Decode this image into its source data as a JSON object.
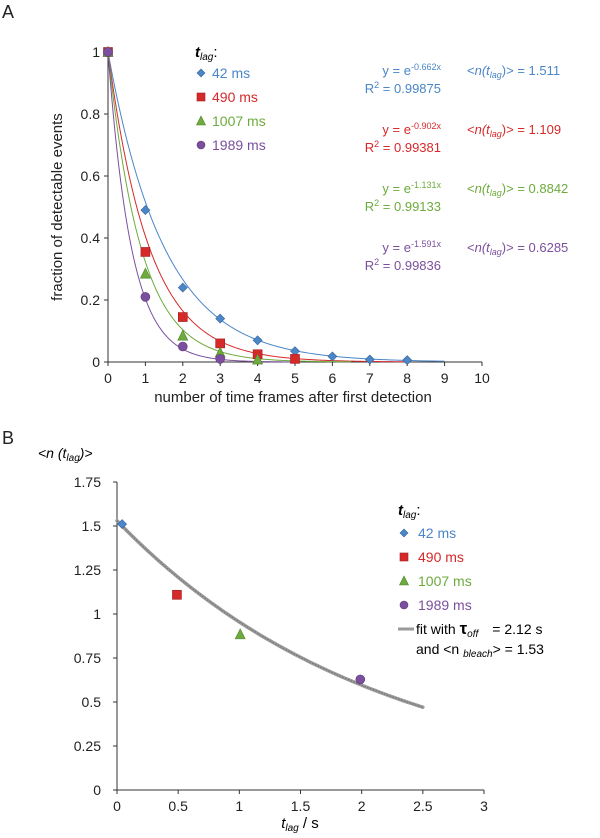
{
  "chart_data": [
    {
      "type": "scatter",
      "panel_label": "A",
      "xlabel": "number of time frames after first detection",
      "ylabel": "fraction of detectable events",
      "xlim": [
        0,
        10
      ],
      "ylim": [
        0,
        1
      ],
      "xticks": [
        "0",
        "1",
        "2",
        "3",
        "4",
        "5",
        "6",
        "7",
        "8",
        "9",
        "10"
      ],
      "yticks": [
        "0",
        "0.2",
        "0.4",
        "0.6",
        "0.8",
        "1"
      ],
      "legend_title_main": "t",
      "legend_title_sub": "lag",
      "legend_title_tail": ":",
      "series": [
        {
          "name": "42 ms",
          "color": "#4a86c8",
          "marker": "diamond",
          "rate": 0.662,
          "fit_x_end": 9.0,
          "x": [
            0,
            1,
            2,
            3,
            4,
            5,
            6,
            7,
            8
          ],
          "y": [
            1.0,
            0.49,
            0.24,
            0.14,
            0.07,
            0.035,
            0.018,
            0.008,
            0.006
          ],
          "eq_prefix": "y = e",
          "eq_exp": "-0.662x",
          "r2_label": "R",
          "r2_sup": "2",
          "r2_value": " = 0.99875",
          "n_open": "<",
          "n_main": "n(t",
          "n_sub": "lag",
          "n_close": ")>",
          "n_value": " = 1.511"
        },
        {
          "name": "490 ms",
          "color": "#d6292a",
          "marker": "square",
          "rate": 0.902,
          "fit_x_end": 8.0,
          "x": [
            0,
            1,
            2,
            3,
            4,
            5
          ],
          "y": [
            1.0,
            0.355,
            0.145,
            0.06,
            0.025,
            0.01
          ],
          "eq_prefix": "y = e",
          "eq_exp": "-0.902x",
          "r2_label": "R",
          "r2_sup": "2",
          "r2_value": " = 0.99381",
          "n_open": "<",
          "n_main": "n(t",
          "n_sub": "lag",
          "n_close": ")>",
          "n_value": " = 1.109"
        },
        {
          "name": "1007 ms",
          "color": "#6dab3c",
          "marker": "triangle",
          "rate": 1.131,
          "fit_x_end": 6.5,
          "x": [
            0,
            1,
            2,
            3,
            4
          ],
          "y": [
            1.0,
            0.285,
            0.085,
            0.03,
            0.008
          ],
          "eq_prefix": "y = e",
          "eq_exp": "-1.131x",
          "r2_label": "R",
          "r2_sup": "2",
          "r2_value": " = 0.99133",
          "n_open": "<",
          "n_main": "n(t",
          "n_sub": "lag",
          "n_close": ")>",
          "n_value": " = 0.8842"
        },
        {
          "name": "1989 ms",
          "color": "#7b4f9e",
          "marker": "circle",
          "rate": 1.591,
          "fit_x_end": 5.0,
          "x": [
            0,
            1,
            2,
            3
          ],
          "y": [
            1.0,
            0.21,
            0.05,
            0.01
          ],
          "eq_prefix": "y = e",
          "eq_exp": "-1.591x",
          "r2_label": "R",
          "r2_sup": "2",
          "r2_value": " = 0.99836",
          "n_open": "<",
          "n_main": "n(t",
          "n_sub": "lag",
          "n_close": ")>",
          "n_value": " = 0.6285"
        }
      ]
    },
    {
      "type": "scatter",
      "panel_label": "B",
      "ytitle_open": "<n (t",
      "ytitle_sub": "lag",
      "ytitle_close": ")>",
      "xlabel_main": "t",
      "xlabel_sub": "lag",
      "xlabel_tail": " / s",
      "xlim": [
        0,
        3
      ],
      "ylim": [
        0,
        1.75
      ],
      "xticks": [
        "0",
        "0.5",
        "1",
        "1.5",
        "2",
        "2.5",
        "3"
      ],
      "yticks": [
        "0",
        "0.25",
        "0.5",
        "0.75",
        "1",
        "1.25",
        "1.5",
        "1.75"
      ],
      "legend_title_main": "t",
      "legend_title_sub": "lag",
      "legend_title_tail": ":",
      "points": [
        {
          "name": "42 ms",
          "color": "#4a86c8",
          "marker": "diamond",
          "x": 0.042,
          "y": 1.511
        },
        {
          "name": "490 ms",
          "color": "#d6292a",
          "marker": "square",
          "x": 0.49,
          "y": 1.109
        },
        {
          "name": "1007 ms",
          "color": "#6dab3c",
          "marker": "triangle",
          "x": 1.007,
          "y": 0.8842
        },
        {
          "name": "1989 ms",
          "color": "#7b4f9e",
          "marker": "circle",
          "x": 1.989,
          "y": 0.6285
        }
      ],
      "fit": {
        "tau_off": 2.12,
        "n_bleach": 1.53,
        "x_start": 0.0,
        "x_end": 2.5,
        "color": "#8a8a8a",
        "line1_prefix": "fit with ",
        "tau_symbol": "τ",
        "tau_sub": "off",
        "line1_value": "= 2.12 s",
        "line2_prefix": "and <n ",
        "line2_sub": "bleach",
        "line2_value": "> = 1.53"
      }
    }
  ]
}
